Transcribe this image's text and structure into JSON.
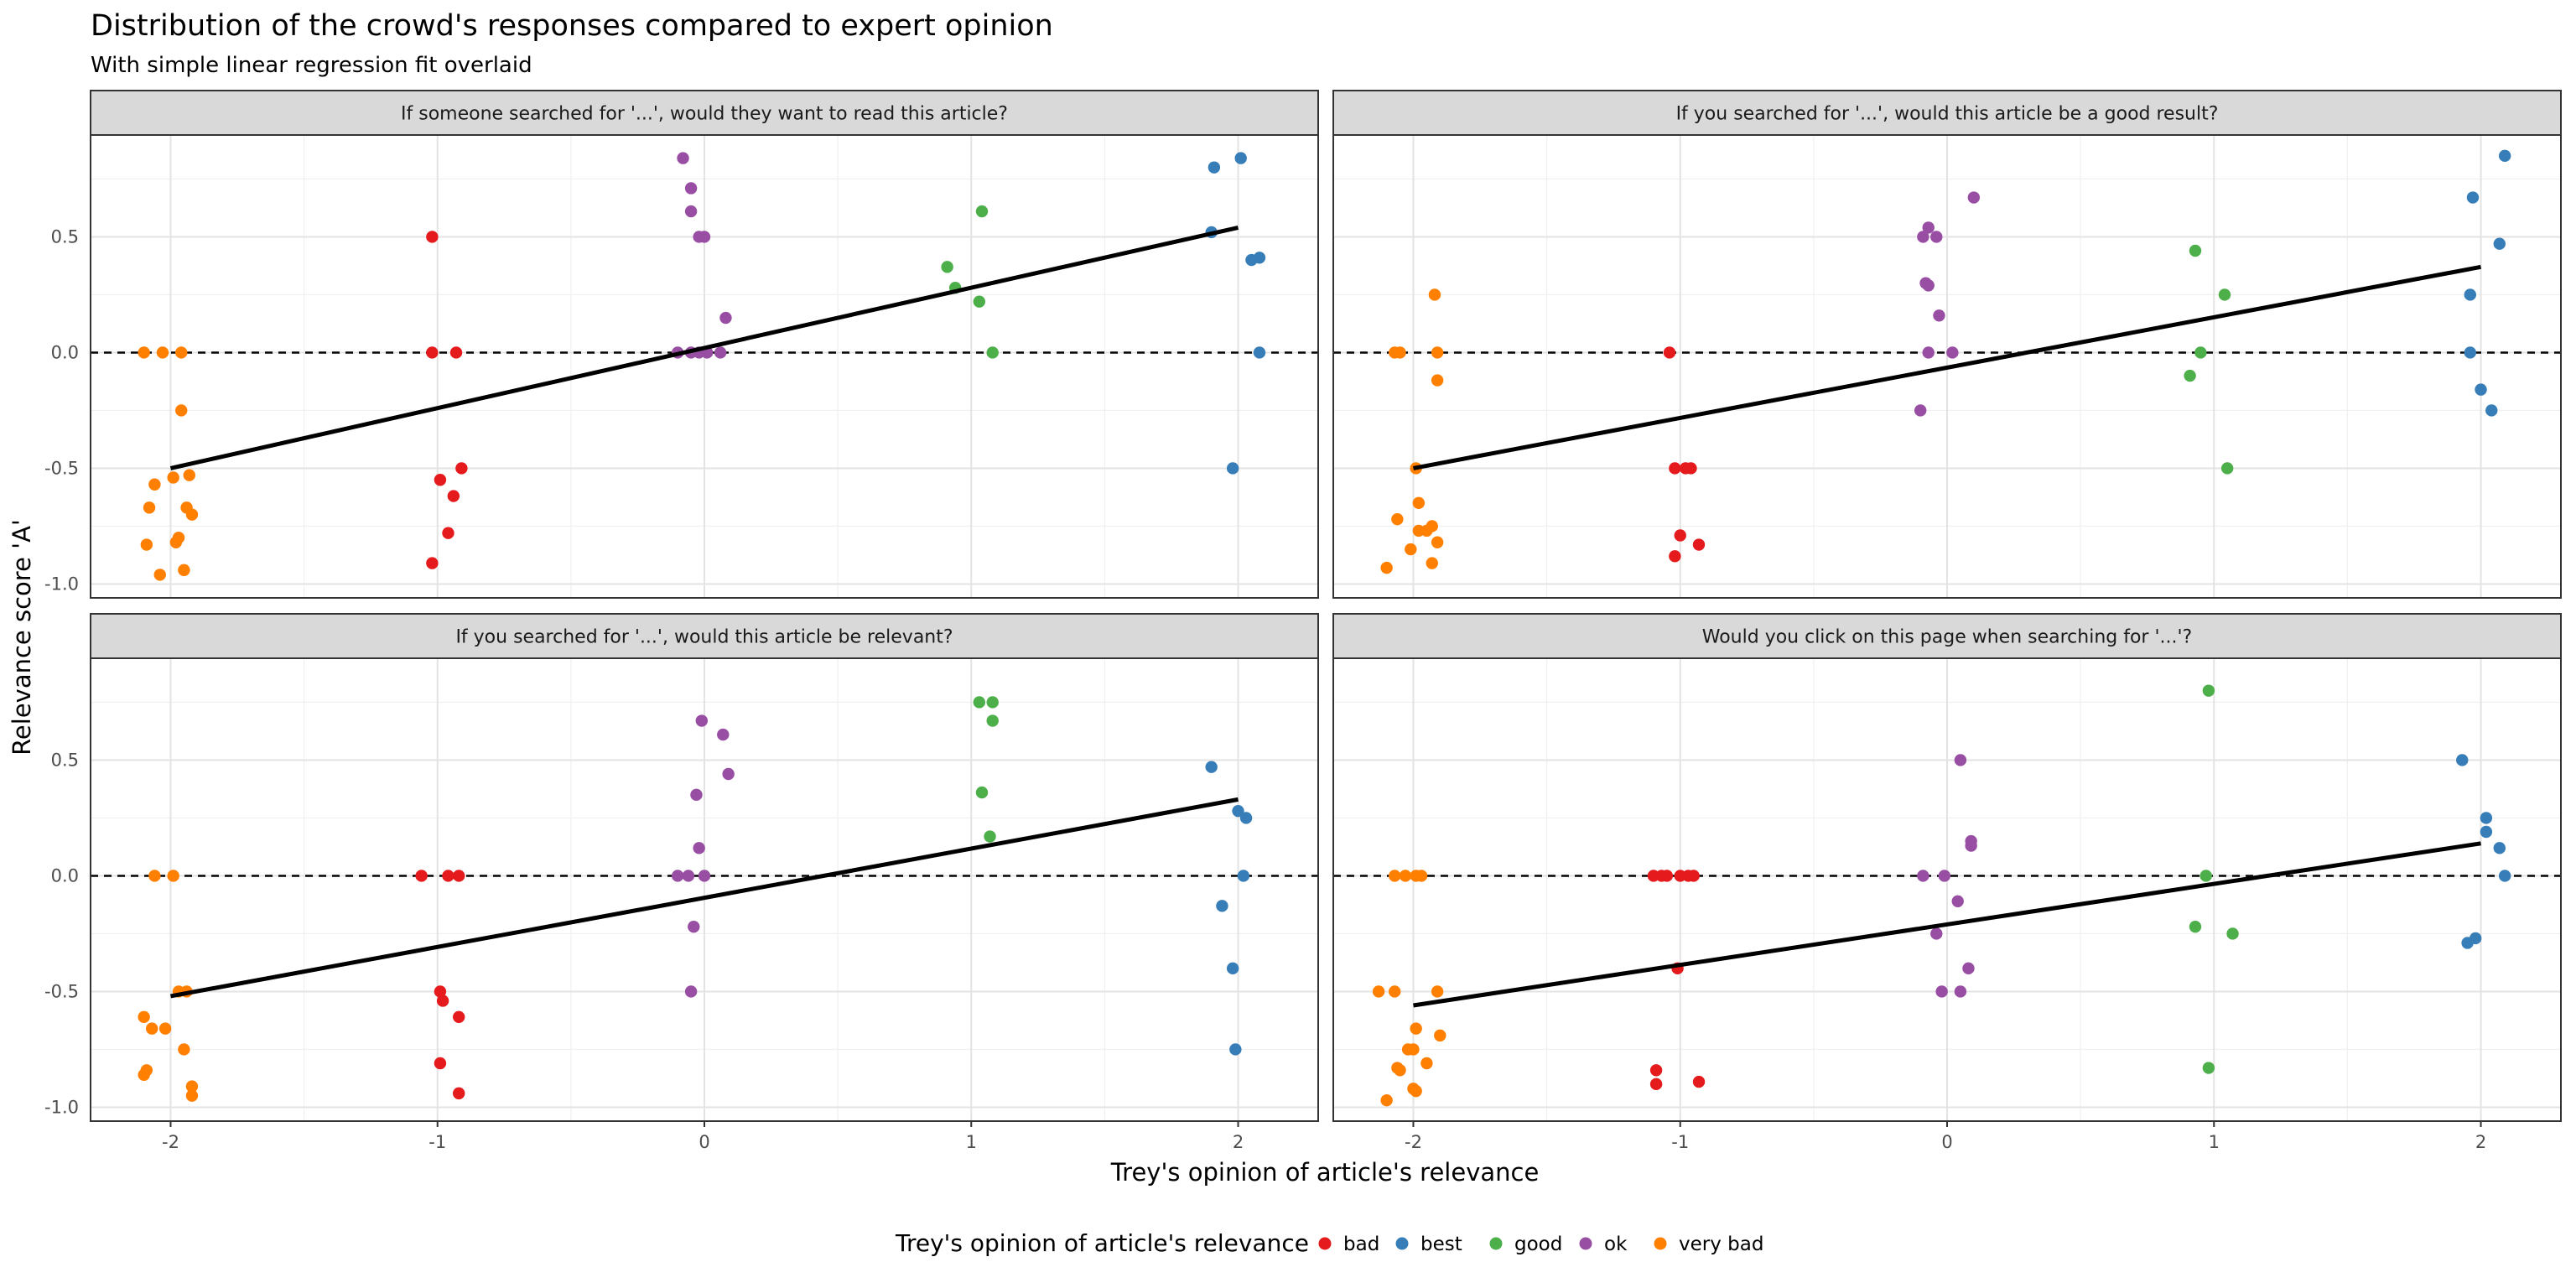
{
  "chart_data": {
    "type": "scatter",
    "title": "Distribution of the crowd's responses compared to expert opinion",
    "subtitle": "With simple linear regression fit overlaid",
    "xlabel": "Trey's opinion of article's relevance",
    "ylabel": "Relevance score 'A'",
    "xlim": [
      -2.3,
      2.3
    ],
    "ylim": [
      -1.06,
      0.94
    ],
    "x_ticks": [
      -2,
      -1,
      0,
      1,
      2
    ],
    "y_ticks": [
      -1.0,
      -0.5,
      0.0,
      0.5
    ],
    "y_tick_labels": [
      "-1.0",
      "-0.5",
      "0.0",
      "0.5"
    ],
    "grid": true,
    "reference_line": {
      "y": 0,
      "style": "dashed"
    },
    "legend": {
      "title": "Trey's opinion of article's relevance",
      "position": "bottom",
      "entries": [
        {
          "label": "bad",
          "color": "#E41A1C"
        },
        {
          "label": "best",
          "color": "#377EB8"
        },
        {
          "label": "good",
          "color": "#4DAF4A"
        },
        {
          "label": "ok",
          "color": "#984EA3"
        },
        {
          "label": "very bad",
          "color": "#FF7F00"
        }
      ]
    },
    "panels": [
      {
        "title": "If someone searched for '...', would they want to read this article?",
        "fit": {
          "x": [
            -2,
            2
          ],
          "y": [
            -0.5,
            0.54
          ]
        },
        "points": [
          {
            "x": -2.1,
            "y": 0.0,
            "c": "very bad"
          },
          {
            "x": -2.03,
            "y": 0.0,
            "c": "very bad"
          },
          {
            "x": -1.96,
            "y": 0.0,
            "c": "very bad"
          },
          {
            "x": -1.96,
            "y": -0.25,
            "c": "very bad"
          },
          {
            "x": -1.99,
            "y": -0.54,
            "c": "very bad"
          },
          {
            "x": -1.93,
            "y": -0.53,
            "c": "very bad"
          },
          {
            "x": -2.06,
            "y": -0.57,
            "c": "very bad"
          },
          {
            "x": -2.08,
            "y": -0.67,
            "c": "very bad"
          },
          {
            "x": -1.94,
            "y": -0.67,
            "c": "very bad"
          },
          {
            "x": -1.92,
            "y": -0.7,
            "c": "very bad"
          },
          {
            "x": -1.97,
            "y": -0.8,
            "c": "very bad"
          },
          {
            "x": -1.98,
            "y": -0.82,
            "c": "very bad"
          },
          {
            "x": -2.09,
            "y": -0.83,
            "c": "very bad"
          },
          {
            "x": -2.04,
            "y": -0.96,
            "c": "very bad"
          },
          {
            "x": -1.95,
            "y": -0.94,
            "c": "very bad"
          },
          {
            "x": -1.02,
            "y": 0.5,
            "c": "bad"
          },
          {
            "x": -1.02,
            "y": 0.0,
            "c": "bad"
          },
          {
            "x": -0.93,
            "y": 0.0,
            "c": "bad"
          },
          {
            "x": -0.91,
            "y": -0.5,
            "c": "bad"
          },
          {
            "x": -0.99,
            "y": -0.55,
            "c": "bad"
          },
          {
            "x": -0.94,
            "y": -0.62,
            "c": "bad"
          },
          {
            "x": -0.96,
            "y": -0.78,
            "c": "bad"
          },
          {
            "x": -1.02,
            "y": -0.91,
            "c": "bad"
          },
          {
            "x": -0.08,
            "y": 0.84,
            "c": "ok"
          },
          {
            "x": -0.05,
            "y": 0.71,
            "c": "ok"
          },
          {
            "x": -0.05,
            "y": 0.61,
            "c": "ok"
          },
          {
            "x": -0.02,
            "y": 0.5,
            "c": "ok"
          },
          {
            "x": 0.0,
            "y": 0.5,
            "c": "ok"
          },
          {
            "x": 0.08,
            "y": 0.15,
            "c": "ok"
          },
          {
            "x": -0.1,
            "y": 0.0,
            "c": "ok"
          },
          {
            "x": -0.05,
            "y": 0.0,
            "c": "ok"
          },
          {
            "x": -0.02,
            "y": 0.0,
            "c": "ok"
          },
          {
            "x": 0.01,
            "y": 0.0,
            "c": "ok"
          },
          {
            "x": 0.06,
            "y": 0.0,
            "c": "ok"
          },
          {
            "x": 1.04,
            "y": 0.61,
            "c": "good"
          },
          {
            "x": 0.91,
            "y": 0.37,
            "c": "good"
          },
          {
            "x": 0.94,
            "y": 0.28,
            "c": "good"
          },
          {
            "x": 1.03,
            "y": 0.22,
            "c": "good"
          },
          {
            "x": 1.08,
            "y": 0.0,
            "c": "good"
          },
          {
            "x": 2.01,
            "y": 0.84,
            "c": "best"
          },
          {
            "x": 1.91,
            "y": 0.8,
            "c": "best"
          },
          {
            "x": 1.9,
            "y": 0.52,
            "c": "best"
          },
          {
            "x": 2.08,
            "y": 0.41,
            "c": "best"
          },
          {
            "x": 2.05,
            "y": 0.4,
            "c": "best"
          },
          {
            "x": 2.08,
            "y": 0.0,
            "c": "best"
          },
          {
            "x": 1.98,
            "y": -0.5,
            "c": "best"
          }
        ]
      },
      {
        "title": "If you searched for '...', would this article be a good result?",
        "fit": {
          "x": [
            -2,
            2
          ],
          "y": [
            -0.5,
            0.37
          ]
        },
        "points": [
          {
            "x": -1.92,
            "y": 0.25,
            "c": "very bad"
          },
          {
            "x": -2.07,
            "y": 0.0,
            "c": "very bad"
          },
          {
            "x": -2.05,
            "y": 0.0,
            "c": "very bad"
          },
          {
            "x": -1.91,
            "y": 0.0,
            "c": "very bad"
          },
          {
            "x": -1.91,
            "y": -0.12,
            "c": "very bad"
          },
          {
            "x": -1.99,
            "y": -0.5,
            "c": "very bad"
          },
          {
            "x": -1.98,
            "y": -0.65,
            "c": "very bad"
          },
          {
            "x": -2.06,
            "y": -0.72,
            "c": "very bad"
          },
          {
            "x": -1.98,
            "y": -0.77,
            "c": "very bad"
          },
          {
            "x": -1.95,
            "y": -0.77,
            "c": "very bad"
          },
          {
            "x": -1.93,
            "y": -0.75,
            "c": "very bad"
          },
          {
            "x": -1.91,
            "y": -0.82,
            "c": "very bad"
          },
          {
            "x": -2.01,
            "y": -0.85,
            "c": "very bad"
          },
          {
            "x": -1.93,
            "y": -0.91,
            "c": "very bad"
          },
          {
            "x": -2.1,
            "y": -0.93,
            "c": "very bad"
          },
          {
            "x": -1.04,
            "y": 0.0,
            "c": "bad"
          },
          {
            "x": -1.02,
            "y": -0.5,
            "c": "bad"
          },
          {
            "x": -0.98,
            "y": -0.5,
            "c": "bad"
          },
          {
            "x": -0.96,
            "y": -0.5,
            "c": "bad"
          },
          {
            "x": -1.0,
            "y": -0.79,
            "c": "bad"
          },
          {
            "x": -0.93,
            "y": -0.83,
            "c": "bad"
          },
          {
            "x": -1.02,
            "y": -0.88,
            "c": "bad"
          },
          {
            "x": 0.1,
            "y": 0.67,
            "c": "ok"
          },
          {
            "x": -0.07,
            "y": 0.54,
            "c": "ok"
          },
          {
            "x": -0.09,
            "y": 0.5,
            "c": "ok"
          },
          {
            "x": -0.04,
            "y": 0.5,
            "c": "ok"
          },
          {
            "x": -0.08,
            "y": 0.3,
            "c": "ok"
          },
          {
            "x": -0.07,
            "y": 0.29,
            "c": "ok"
          },
          {
            "x": -0.03,
            "y": 0.16,
            "c": "ok"
          },
          {
            "x": -0.07,
            "y": 0.0,
            "c": "ok"
          },
          {
            "x": 0.02,
            "y": 0.0,
            "c": "ok"
          },
          {
            "x": -0.1,
            "y": -0.25,
            "c": "ok"
          },
          {
            "x": 0.93,
            "y": 0.44,
            "c": "good"
          },
          {
            "x": 1.04,
            "y": 0.25,
            "c": "good"
          },
          {
            "x": 0.95,
            "y": 0.0,
            "c": "good"
          },
          {
            "x": 0.91,
            "y": -0.1,
            "c": "good"
          },
          {
            "x": 1.05,
            "y": -0.5,
            "c": "good"
          },
          {
            "x": 2.09,
            "y": 0.85,
            "c": "best"
          },
          {
            "x": 1.97,
            "y": 0.67,
            "c": "best"
          },
          {
            "x": 2.07,
            "y": 0.47,
            "c": "best"
          },
          {
            "x": 1.96,
            "y": 0.25,
            "c": "best"
          },
          {
            "x": 1.96,
            "y": 0.0,
            "c": "best"
          },
          {
            "x": 2.0,
            "y": -0.16,
            "c": "best"
          },
          {
            "x": 2.04,
            "y": -0.25,
            "c": "best"
          }
        ]
      },
      {
        "title": "If you searched for '...', would this article be relevant?",
        "fit": {
          "x": [
            -2,
            2
          ],
          "y": [
            -0.52,
            0.33
          ]
        },
        "points": [
          {
            "x": -2.06,
            "y": 0.0,
            "c": "very bad"
          },
          {
            "x": -1.99,
            "y": 0.0,
            "c": "very bad"
          },
          {
            "x": -1.97,
            "y": -0.5,
            "c": "very bad"
          },
          {
            "x": -1.94,
            "y": -0.5,
            "c": "very bad"
          },
          {
            "x": -2.1,
            "y": -0.61,
            "c": "very bad"
          },
          {
            "x": -2.07,
            "y": -0.66,
            "c": "very bad"
          },
          {
            "x": -2.02,
            "y": -0.66,
            "c": "very bad"
          },
          {
            "x": -1.95,
            "y": -0.75,
            "c": "very bad"
          },
          {
            "x": -2.09,
            "y": -0.84,
            "c": "very bad"
          },
          {
            "x": -2.1,
            "y": -0.86,
            "c": "very bad"
          },
          {
            "x": -1.92,
            "y": -0.91,
            "c": "very bad"
          },
          {
            "x": -1.92,
            "y": -0.95,
            "c": "very bad"
          },
          {
            "x": -1.06,
            "y": 0.0,
            "c": "bad"
          },
          {
            "x": -0.96,
            "y": 0.0,
            "c": "bad"
          },
          {
            "x": -0.92,
            "y": 0.0,
            "c": "bad"
          },
          {
            "x": -0.99,
            "y": -0.5,
            "c": "bad"
          },
          {
            "x": -0.98,
            "y": -0.54,
            "c": "bad"
          },
          {
            "x": -0.92,
            "y": -0.61,
            "c": "bad"
          },
          {
            "x": -0.99,
            "y": -0.81,
            "c": "bad"
          },
          {
            "x": -0.92,
            "y": -0.94,
            "c": "bad"
          },
          {
            "x": -0.01,
            "y": 0.67,
            "c": "ok"
          },
          {
            "x": 0.07,
            "y": 0.61,
            "c": "ok"
          },
          {
            "x": 0.09,
            "y": 0.44,
            "c": "ok"
          },
          {
            "x": -0.03,
            "y": 0.35,
            "c": "ok"
          },
          {
            "x": -0.02,
            "y": 0.12,
            "c": "ok"
          },
          {
            "x": -0.1,
            "y": 0.0,
            "c": "ok"
          },
          {
            "x": -0.06,
            "y": 0.0,
            "c": "ok"
          },
          {
            "x": 0.0,
            "y": 0.0,
            "c": "ok"
          },
          {
            "x": -0.04,
            "y": -0.22,
            "c": "ok"
          },
          {
            "x": -0.05,
            "y": -0.5,
            "c": "ok"
          },
          {
            "x": 1.03,
            "y": 0.75,
            "c": "good"
          },
          {
            "x": 1.08,
            "y": 0.75,
            "c": "good"
          },
          {
            "x": 1.08,
            "y": 0.67,
            "c": "good"
          },
          {
            "x": 1.04,
            "y": 0.36,
            "c": "good"
          },
          {
            "x": 1.07,
            "y": 0.17,
            "c": "good"
          },
          {
            "x": 1.9,
            "y": 0.47,
            "c": "best"
          },
          {
            "x": 2.0,
            "y": 0.28,
            "c": "best"
          },
          {
            "x": 2.03,
            "y": 0.25,
            "c": "best"
          },
          {
            "x": 2.02,
            "y": 0.0,
            "c": "best"
          },
          {
            "x": 1.94,
            "y": -0.13,
            "c": "best"
          },
          {
            "x": 1.98,
            "y": -0.4,
            "c": "best"
          },
          {
            "x": 1.99,
            "y": -0.75,
            "c": "best"
          }
        ]
      },
      {
        "title": "Would you click on this page when searching for '...'?",
        "fit": {
          "x": [
            -2,
            2
          ],
          "y": [
            -0.56,
            0.14
          ]
        },
        "points": [
          {
            "x": -2.07,
            "y": 0.0,
            "c": "very bad"
          },
          {
            "x": -2.03,
            "y": 0.0,
            "c": "very bad"
          },
          {
            "x": -1.99,
            "y": 0.0,
            "c": "very bad"
          },
          {
            "x": -1.97,
            "y": 0.0,
            "c": "very bad"
          },
          {
            "x": -2.13,
            "y": -0.5,
            "c": "very bad"
          },
          {
            "x": -2.07,
            "y": -0.5,
            "c": "very bad"
          },
          {
            "x": -1.91,
            "y": -0.5,
            "c": "very bad"
          },
          {
            "x": -1.99,
            "y": -0.66,
            "c": "very bad"
          },
          {
            "x": -1.9,
            "y": -0.69,
            "c": "very bad"
          },
          {
            "x": -2.02,
            "y": -0.75,
            "c": "very bad"
          },
          {
            "x": -2.0,
            "y": -0.75,
            "c": "very bad"
          },
          {
            "x": -1.95,
            "y": -0.81,
            "c": "very bad"
          },
          {
            "x": -2.06,
            "y": -0.83,
            "c": "very bad"
          },
          {
            "x": -2.05,
            "y": -0.84,
            "c": "very bad"
          },
          {
            "x": -2.0,
            "y": -0.92,
            "c": "very bad"
          },
          {
            "x": -1.99,
            "y": -0.93,
            "c": "very bad"
          },
          {
            "x": -2.1,
            "y": -0.97,
            "c": "very bad"
          },
          {
            "x": -1.1,
            "y": 0.0,
            "c": "bad"
          },
          {
            "x": -1.07,
            "y": 0.0,
            "c": "bad"
          },
          {
            "x": -1.05,
            "y": 0.0,
            "c": "bad"
          },
          {
            "x": -1.0,
            "y": 0.0,
            "c": "bad"
          },
          {
            "x": -0.97,
            "y": 0.0,
            "c": "bad"
          },
          {
            "x": -0.95,
            "y": 0.0,
            "c": "bad"
          },
          {
            "x": -1.01,
            "y": -0.4,
            "c": "bad"
          },
          {
            "x": -1.09,
            "y": -0.84,
            "c": "bad"
          },
          {
            "x": -1.09,
            "y": -0.9,
            "c": "bad"
          },
          {
            "x": -0.93,
            "y": -0.89,
            "c": "bad"
          },
          {
            "x": 0.05,
            "y": 0.5,
            "c": "ok"
          },
          {
            "x": 0.09,
            "y": 0.15,
            "c": "ok"
          },
          {
            "x": 0.09,
            "y": 0.13,
            "c": "ok"
          },
          {
            "x": -0.09,
            "y": 0.0,
            "c": "ok"
          },
          {
            "x": -0.01,
            "y": 0.0,
            "c": "ok"
          },
          {
            "x": 0.04,
            "y": -0.11,
            "c": "ok"
          },
          {
            "x": -0.04,
            "y": -0.25,
            "c": "ok"
          },
          {
            "x": 0.08,
            "y": -0.4,
            "c": "ok"
          },
          {
            "x": -0.02,
            "y": -0.5,
            "c": "ok"
          },
          {
            "x": 0.05,
            "y": -0.5,
            "c": "ok"
          },
          {
            "x": 0.98,
            "y": 0.8,
            "c": "good"
          },
          {
            "x": 0.97,
            "y": 0.0,
            "c": "good"
          },
          {
            "x": 0.93,
            "y": -0.22,
            "c": "good"
          },
          {
            "x": 1.07,
            "y": -0.25,
            "c": "good"
          },
          {
            "x": 0.98,
            "y": -0.83,
            "c": "good"
          },
          {
            "x": 1.93,
            "y": 0.5,
            "c": "best"
          },
          {
            "x": 2.02,
            "y": 0.25,
            "c": "best"
          },
          {
            "x": 2.02,
            "y": 0.19,
            "c": "best"
          },
          {
            "x": 2.07,
            "y": 0.12,
            "c": "best"
          },
          {
            "x": 2.09,
            "y": 0.0,
            "c": "best"
          },
          {
            "x": 1.95,
            "y": -0.29,
            "c": "best"
          },
          {
            "x": 1.98,
            "y": -0.27,
            "c": "best"
          }
        ]
      }
    ]
  }
}
